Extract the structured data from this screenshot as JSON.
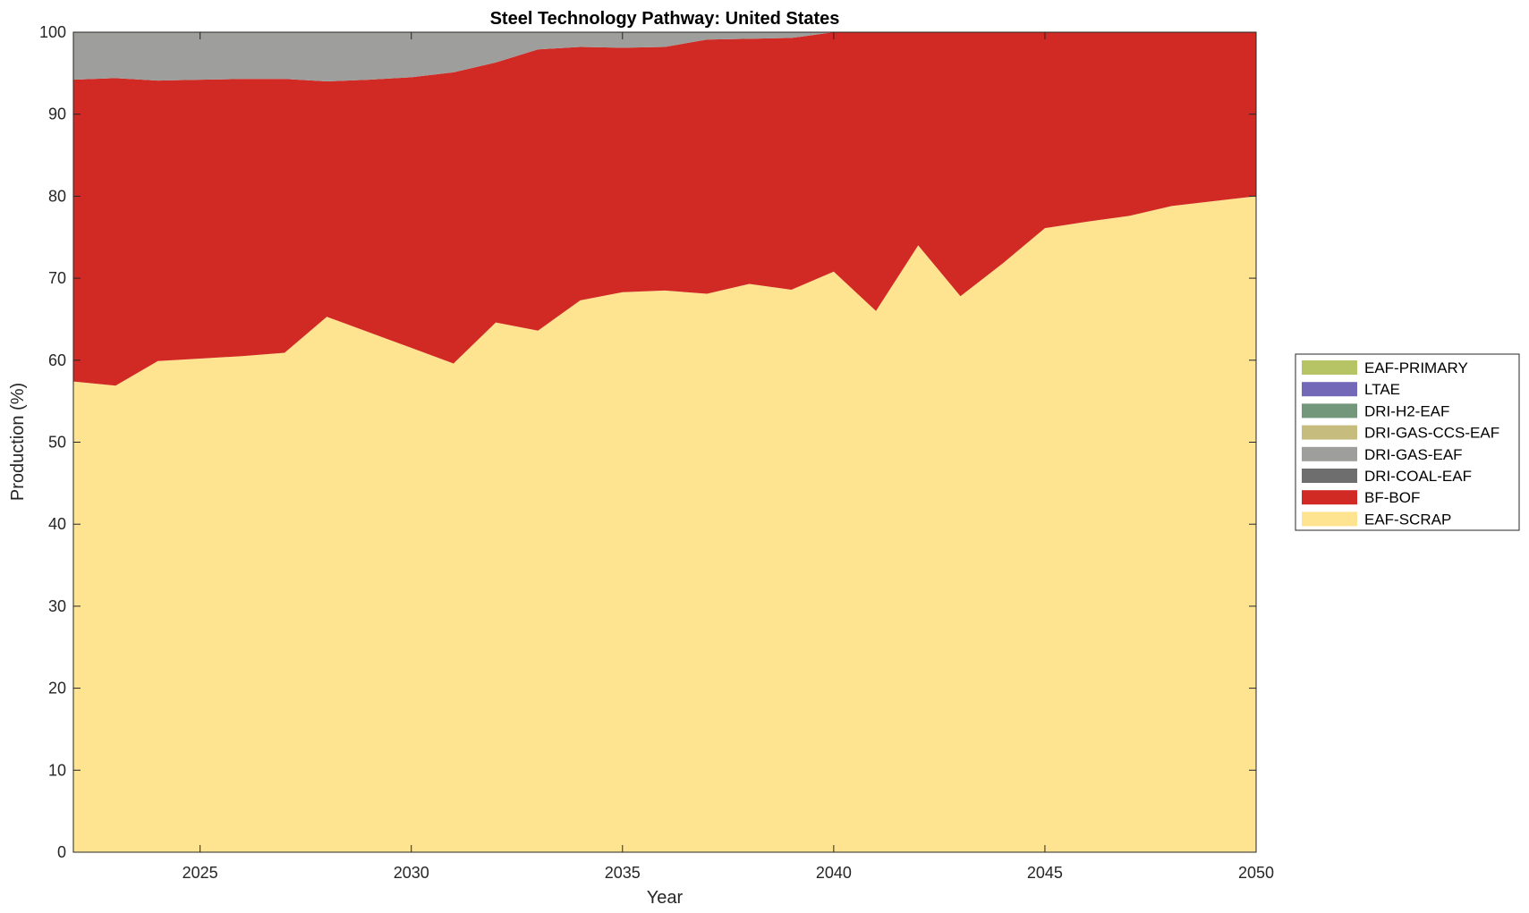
{
  "chart_data": {
    "type": "area",
    "stacked": true,
    "title": "Steel Technology Pathway: United States",
    "xlabel": "Year",
    "ylabel": "Production (%)",
    "xlim": [
      2022,
      2050
    ],
    "ylim": [
      0,
      100
    ],
    "xticks": [
      2025,
      2030,
      2035,
      2040,
      2045,
      2050
    ],
    "yticks": [
      0,
      10,
      20,
      30,
      40,
      50,
      60,
      70,
      80,
      90,
      100
    ],
    "grid": false,
    "legend_position": "right",
    "x": [
      2022,
      2023,
      2024,
      2025,
      2026,
      2027,
      2028,
      2029,
      2030,
      2031,
      2032,
      2033,
      2034,
      2035,
      2036,
      2037,
      2038,
      2039,
      2040,
      2041,
      2042,
      2043,
      2044,
      2045,
      2046,
      2047,
      2048,
      2049,
      2050
    ],
    "series": [
      {
        "name": "EAF-SCRAP",
        "color": "#FEE391",
        "values": [
          57.4,
          56.9,
          59.9,
          60.2,
          60.5,
          60.9,
          65.3,
          63.4,
          61.5,
          59.6,
          64.6,
          63.6,
          67.3,
          68.3,
          68.5,
          68.1,
          69.3,
          68.6,
          70.8,
          66.0,
          74.0,
          67.8,
          71.8,
          76.1,
          76.9,
          77.6,
          78.8,
          79.4,
          80.0
        ]
      },
      {
        "name": "BF-BOF",
        "color": "#D12A24",
        "values": [
          36.8,
          37.5,
          34.2,
          34.0,
          33.8,
          33.4,
          28.7,
          30.8,
          33.0,
          35.5,
          31.7,
          34.3,
          30.9,
          29.8,
          29.7,
          31.0,
          29.9,
          30.7,
          29.2,
          34.0,
          26.0,
          32.2,
          28.2,
          23.9,
          23.1,
          22.4,
          21.2,
          20.6,
          20.0
        ]
      },
      {
        "name": "DRI-COAL-EAF",
        "color": "#6E6E6E",
        "values": [
          0,
          0,
          0,
          0,
          0,
          0,
          0,
          0,
          0,
          0,
          0,
          0,
          0,
          0,
          0,
          0,
          0,
          0,
          0,
          0,
          0,
          0,
          0,
          0,
          0,
          0,
          0,
          0,
          0
        ]
      },
      {
        "name": "DRI-GAS-EAF",
        "color": "#9E9E9C",
        "values": [
          5.8,
          5.6,
          5.9,
          5.8,
          5.7,
          5.7,
          6.0,
          5.8,
          5.5,
          4.9,
          3.7,
          2.1,
          1.8,
          1.9,
          1.8,
          0.9,
          0.8,
          0.7,
          0,
          0,
          0,
          0,
          0,
          0,
          0,
          0,
          0,
          0,
          0
        ]
      },
      {
        "name": "DRI-GAS-CCS-EAF",
        "color": "#C6BC7E",
        "values": [
          0,
          0,
          0,
          0,
          0,
          0,
          0,
          0,
          0,
          0,
          0,
          0,
          0,
          0,
          0,
          0,
          0,
          0,
          0,
          0,
          0,
          0,
          0,
          0,
          0,
          0,
          0,
          0,
          0
        ]
      },
      {
        "name": "DRI-H2-EAF",
        "color": "#72977B",
        "values": [
          0,
          0,
          0,
          0,
          0,
          0,
          0,
          0,
          0,
          0,
          0,
          0,
          0,
          0,
          0,
          0,
          0,
          0,
          0,
          0,
          0,
          0,
          0,
          0,
          0,
          0,
          0,
          0,
          0
        ]
      },
      {
        "name": "LTAE",
        "color": "#7367B8",
        "values": [
          0,
          0,
          0,
          0,
          0,
          0,
          0,
          0,
          0,
          0,
          0,
          0,
          0,
          0,
          0,
          0,
          0,
          0,
          0,
          0,
          0,
          0,
          0,
          0,
          0,
          0,
          0,
          0,
          0
        ]
      },
      {
        "name": "EAF-PRIMARY",
        "color": "#B7C466",
        "values": [
          0,
          0,
          0,
          0,
          0,
          0,
          0,
          0,
          0,
          0,
          0,
          0,
          0,
          0,
          0,
          0,
          0,
          0,
          0,
          0,
          0,
          0,
          0,
          0,
          0,
          0,
          0,
          0,
          0
        ]
      }
    ]
  }
}
